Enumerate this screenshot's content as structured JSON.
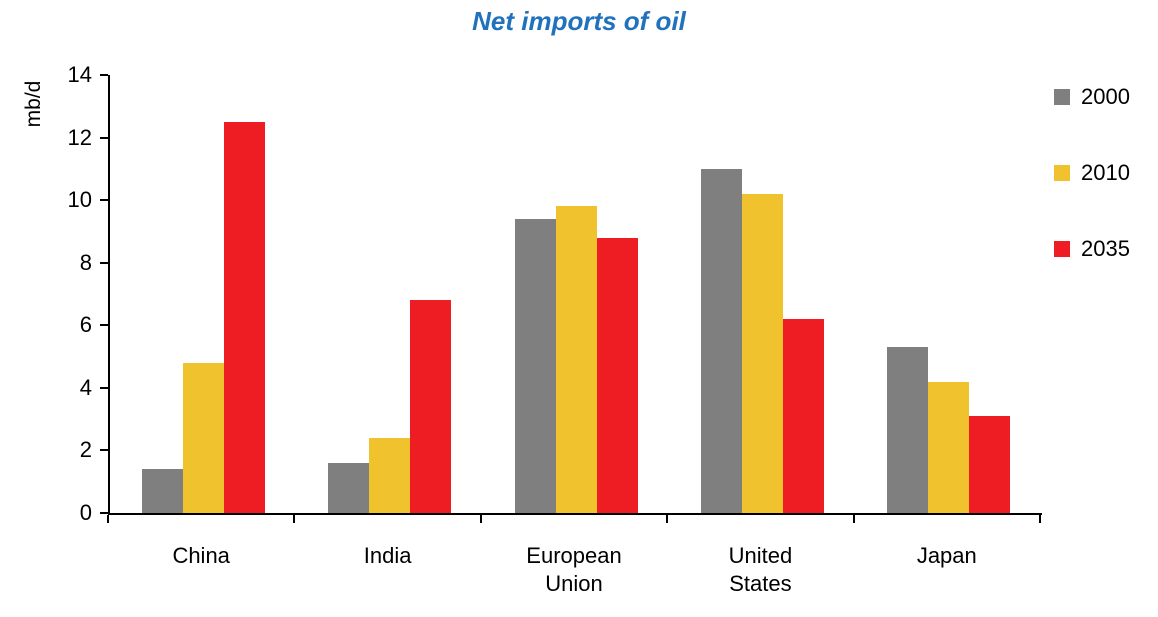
{
  "chart_data": {
    "type": "bar",
    "title": "Net imports of oil",
    "ylabel": "mb/d",
    "xlabel": "",
    "ylim": [
      0,
      14
    ],
    "yticks": [
      0,
      2,
      4,
      6,
      8,
      10,
      12,
      14
    ],
    "grid": false,
    "legend_position": "right",
    "categories": [
      "China",
      "India",
      "European Union",
      "United States",
      "Japan"
    ],
    "series": [
      {
        "name": "2000",
        "color": "#7F7F7F",
        "values": [
          1.4,
          1.6,
          9.4,
          11.0,
          5.3
        ]
      },
      {
        "name": "2010",
        "color": "#EFC22E",
        "values": [
          4.8,
          2.4,
          9.8,
          10.2,
          4.2
        ]
      },
      {
        "name": "2035",
        "color": "#EE1D23",
        "values": [
          12.5,
          6.8,
          8.8,
          6.2,
          3.1
        ]
      }
    ],
    "title_color": "#2072BC",
    "axis_color": "#000000"
  }
}
